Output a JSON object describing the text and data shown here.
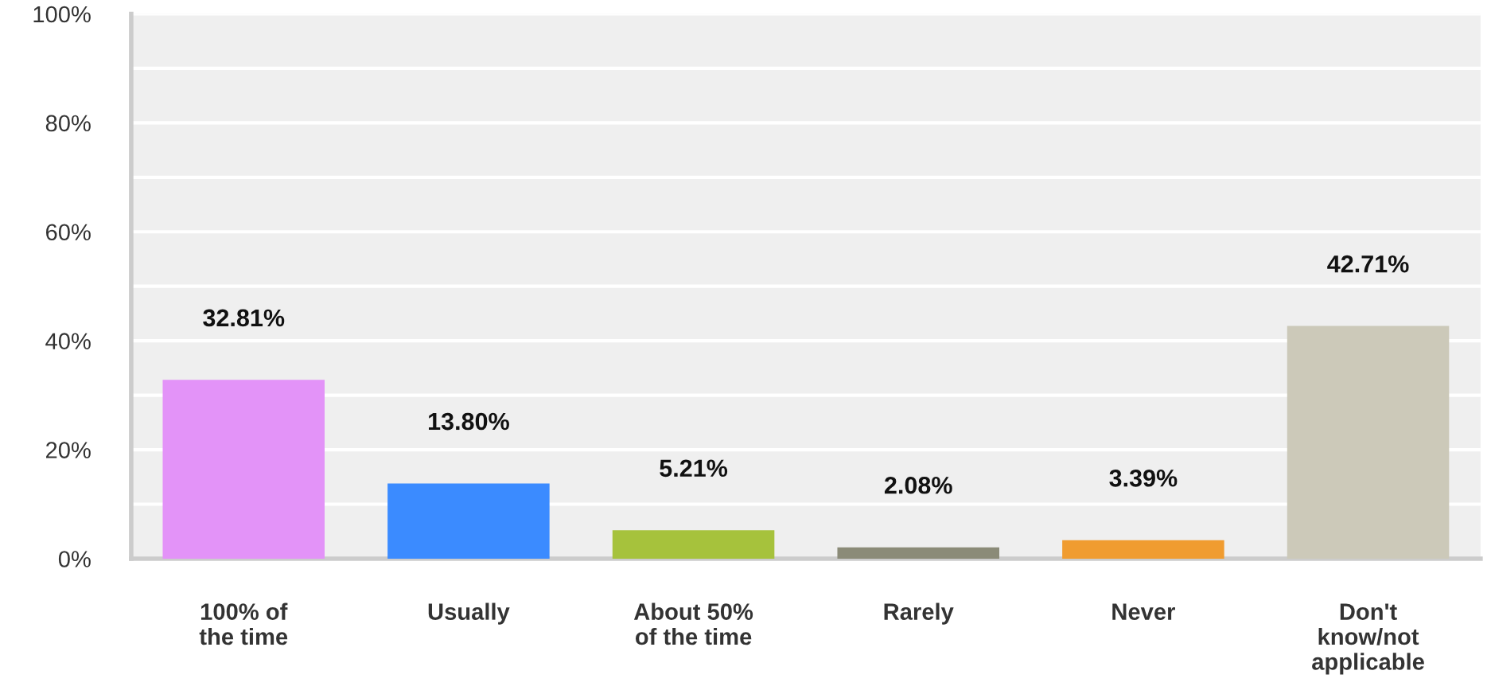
{
  "chart_data": {
    "type": "bar",
    "categories": [
      "100% of\nthe time",
      "Usually",
      "About 50%\nof the time",
      "Rarely",
      "Never",
      "Don't\nknow/not\napplicable"
    ],
    "values": [
      32.81,
      13.8,
      5.21,
      2.08,
      3.39,
      42.71
    ],
    "value_labels": [
      "32.81%",
      "13.80%",
      "5.21%",
      "2.08%",
      "3.39%",
      "42.71%"
    ],
    "colors": [
      "#e393f8",
      "#3b8bff",
      "#a6c23c",
      "#8b8b78",
      "#f09c30",
      "#ccc9b9"
    ],
    "ylim": [
      0,
      100
    ],
    "yticks": [
      {
        "value": 0,
        "label": "0%"
      },
      {
        "value": 10,
        "label": null
      },
      {
        "value": 20,
        "label": "20%"
      },
      {
        "value": 30,
        "label": null
      },
      {
        "value": 40,
        "label": "40%"
      },
      {
        "value": 50,
        "label": null
      },
      {
        "value": 60,
        "label": "60%"
      },
      {
        "value": 70,
        "label": null
      },
      {
        "value": 80,
        "label": "80%"
      },
      {
        "value": 90,
        "label": null
      },
      {
        "value": 100,
        "label": "100%"
      }
    ],
    "grid": "y",
    "legend": false
  }
}
